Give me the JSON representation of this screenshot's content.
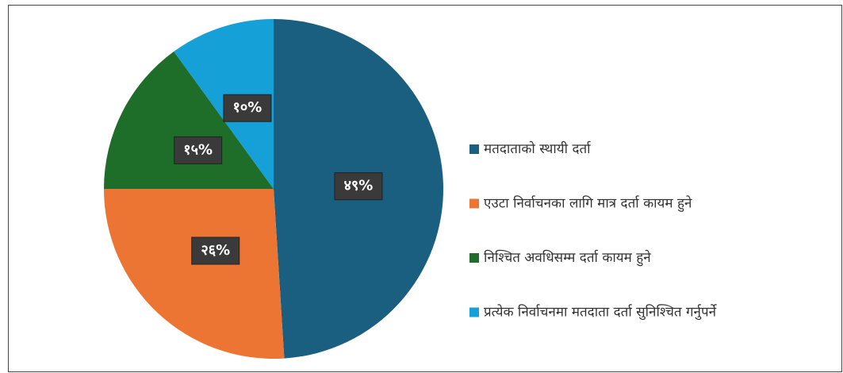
{
  "chart_data": {
    "type": "pie",
    "categories": [
      "मतदाताको स्थायी दर्ता",
      "एउटा निर्वाचनका लागि मात्र दर्ता कायम हुने",
      "निश्चित अवधिसम्म दर्ता कायम हुने",
      "प्रत्येक निर्वाचनमा मतदाता दर्ता सुनिश्चित गर्नुपर्ने"
    ],
    "values": [
      49,
      26,
      15,
      10
    ],
    "value_labels": [
      "४९%",
      "२६%",
      "१५%",
      "१०%"
    ],
    "colors": [
      "#1a5f80",
      "#ec7533",
      "#1e6e2a",
      "#16a0d8"
    ],
    "legend": "right"
  }
}
